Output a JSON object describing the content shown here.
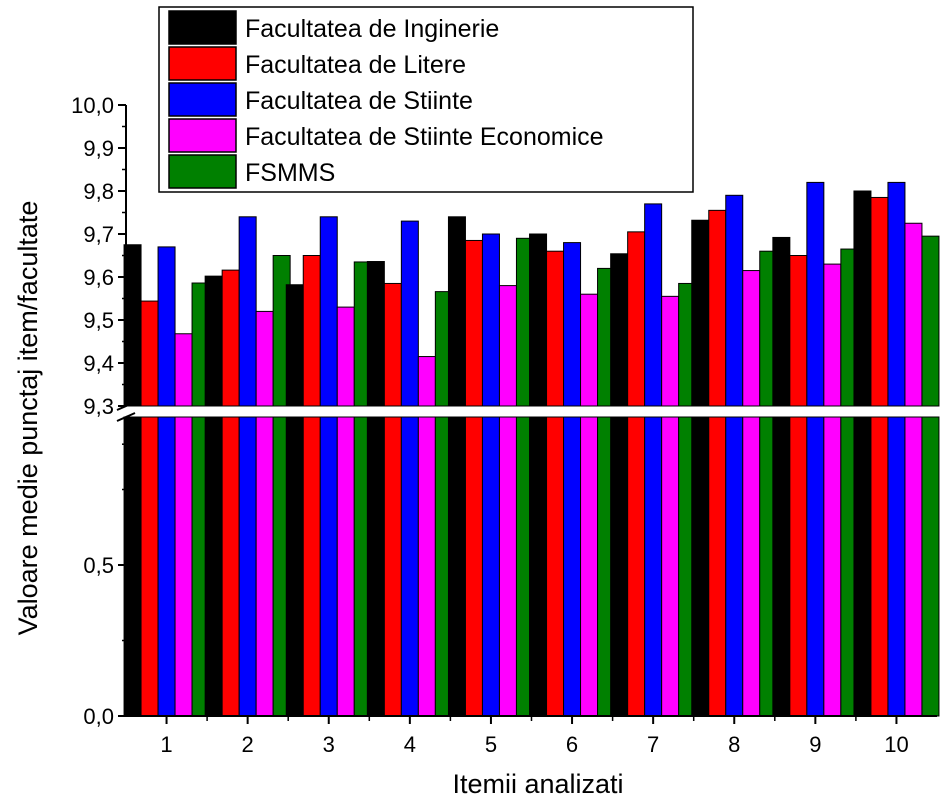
{
  "chart_data": {
    "type": "bar",
    "xlabel": "Itemii analizati",
    "ylabel": "Valoare medie punctaj item/facultate",
    "categories": [
      "1",
      "2",
      "3",
      "4",
      "5",
      "6",
      "7",
      "8",
      "9",
      "10"
    ],
    "axis_break": {
      "lower_range": [
        0.0,
        1.2
      ],
      "upper_range": [
        9.3,
        10.0
      ]
    },
    "y_ticks_lower": [
      "0,0",
      "0,5"
    ],
    "y_ticks_upper": [
      "9,3",
      "9,4",
      "9,5",
      "9,6",
      "9,7",
      "9,8",
      "9,9",
      "10,0"
    ],
    "legend_position": "top",
    "series": [
      {
        "name": "Facultatea de Inginerie",
        "color": "#000000",
        "values": [
          9.675,
          9.602,
          9.582,
          9.636,
          9.74,
          9.7,
          9.654,
          9.732,
          9.692,
          9.8
        ]
      },
      {
        "name": "Facultatea de Litere",
        "color": "#ff0000",
        "values": [
          9.544,
          9.616,
          9.65,
          9.585,
          9.685,
          9.66,
          9.705,
          9.755,
          9.65,
          9.785
        ]
      },
      {
        "name": "Facultatea de Stiinte",
        "color": "#0000ff",
        "values": [
          9.67,
          9.74,
          9.74,
          9.73,
          9.7,
          9.68,
          9.77,
          9.79,
          9.82,
          9.82
        ]
      },
      {
        "name": "Facultatea de Stiinte Economice",
        "color": "#ff00ff",
        "values": [
          9.468,
          9.52,
          9.53,
          9.415,
          9.58,
          9.56,
          9.555,
          9.615,
          9.63,
          9.725
        ]
      },
      {
        "name": "FSMMS",
        "color": "#008000",
        "values": [
          9.586,
          9.65,
          9.635,
          9.566,
          9.69,
          9.62,
          9.585,
          9.66,
          9.665,
          9.695
        ]
      }
    ]
  }
}
